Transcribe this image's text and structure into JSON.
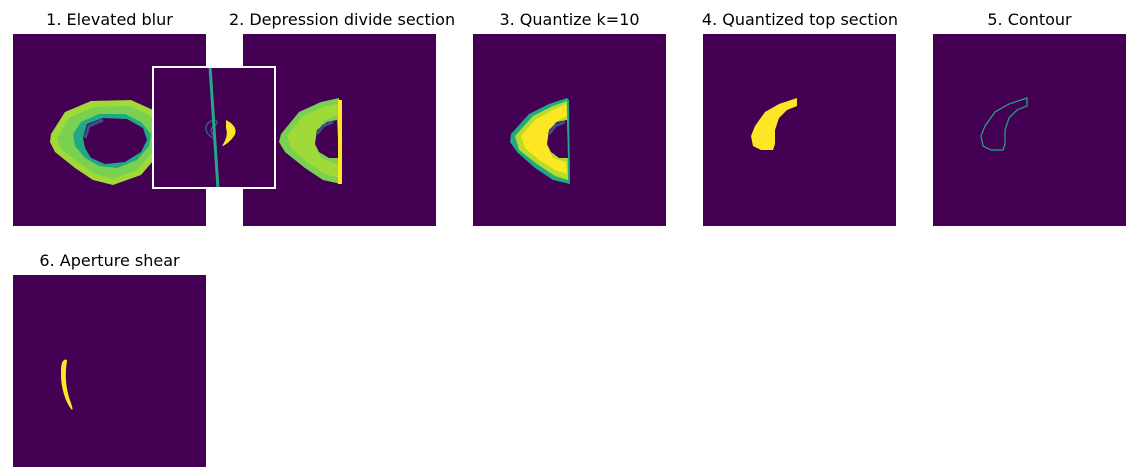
{
  "figure": {
    "panels": [
      {
        "title": "1. Elevated blur"
      },
      {
        "title": "2. Depression divide section"
      },
      {
        "title": "3. Quantize k=10"
      },
      {
        "title": "4. Quantized top section"
      },
      {
        "title": "5. Contour"
      },
      {
        "title": "6. Aperture shear"
      }
    ]
  },
  "colors": {
    "background": "#440154",
    "yellow": "#fde725",
    "yellow_green": "#d2e21b",
    "green": "#7ad151",
    "teal_green": "#22a884",
    "teal": "#2a788e",
    "blue": "#3b528b",
    "dark_blue": "#31446b",
    "inset_line": "#22a884",
    "inset_border": "#ffffff"
  }
}
